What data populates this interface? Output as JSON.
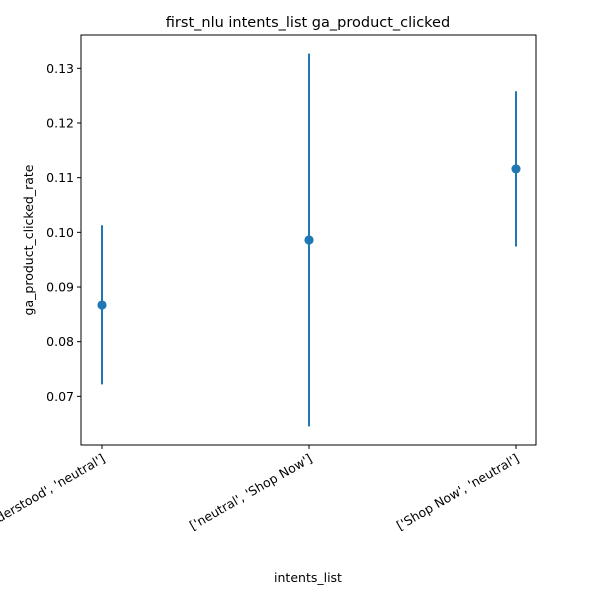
{
  "chart_data": {
    "type": "scatter",
    "title": "first_nlu intents_list ga_product_clicked",
    "xlabel": "intents_list",
    "ylabel": "ga_product_clicked_rate",
    "categories": [
      "['Not Understood', 'neutral']",
      "['neutral', 'Shop Now']",
      "['Shop Now', 'neutral']"
    ],
    "series": [
      {
        "values": [
          0.0867,
          0.0986,
          0.1116
        ],
        "error_low": [
          0.0722,
          0.0645,
          0.0974
        ],
        "error_high": [
          0.1013,
          0.1327,
          0.1258
        ]
      }
    ],
    "ylim": [
      0.0611,
      0.1361
    ],
    "yticks": [
      0.07,
      0.08,
      0.09,
      0.1,
      0.11,
      0.12,
      0.13
    ],
    "ytick_labels": [
      "0.07",
      "0.08",
      "0.09",
      "0.10",
      "0.11",
      "0.12",
      "0.13"
    ],
    "grid": false,
    "color": "#1f77b4"
  }
}
